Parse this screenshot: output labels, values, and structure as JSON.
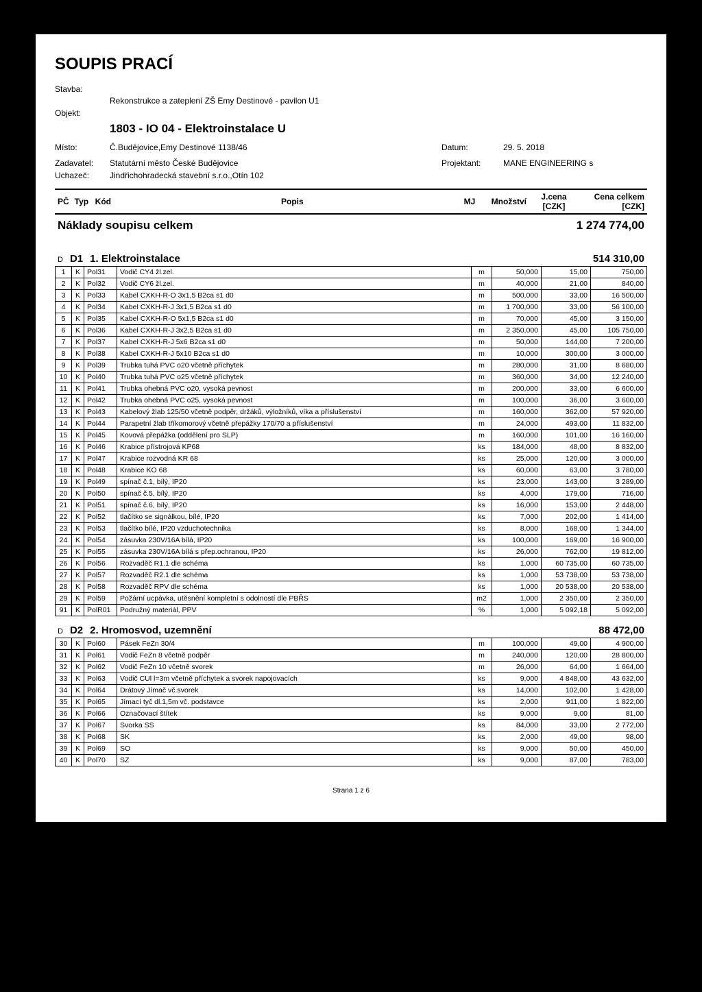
{
  "title": "SOUPIS PRACÍ",
  "header": {
    "stavba_label": "Stavba:",
    "stavba_value": "Rekonstrukce a zateplení ZŠ Emy Destinové - pavilon U1",
    "objekt_label": "Objekt:",
    "objekt_value": "1803 - IO 04 - Elektroinstalace U",
    "misto_label": "Místo:",
    "misto_value": "Č.Budějovice,Emy Destinové 1138/46",
    "zadavatel_label": "Zadavatel:",
    "zadavatel_value": "Statutární město České Budějovice",
    "uchazec_label": "Uchazeč:",
    "uchazec_value": "Jindřichohradecká stavební s.r.o.,Otín 102",
    "datum_label": "Datum:",
    "datum_value": "29. 5. 2018",
    "projektant_label": "Projektant:",
    "projektant_value": "MANE ENGINEERING s"
  },
  "columns": {
    "pc": "PČ",
    "typ": "Typ",
    "kod": "Kód",
    "popis": "Popis",
    "mj": "MJ",
    "mnozstvi": "Množství",
    "jcena": "J.cena [CZK]",
    "cena": "Cena celkem [CZK]"
  },
  "summary": {
    "label": "Náklady soupisu celkem",
    "value": "1 274 774,00"
  },
  "sections": [
    {
      "dmark": "D",
      "code": "D1",
      "title": "1. Elektroinstalace",
      "total": "514 310,00",
      "rows": [
        {
          "n": "1",
          "t": "K",
          "k": "Pol31",
          "p": "Vodič CY4 žl.zel.",
          "mj": "m",
          "mn": "50,000",
          "jc": "15,00",
          "cc": "750,00"
        },
        {
          "n": "2",
          "t": "K",
          "k": "Pol32",
          "p": "Vodič CY6 žl.zel.",
          "mj": "m",
          "mn": "40,000",
          "jc": "21,00",
          "cc": "840,00"
        },
        {
          "n": "3",
          "t": "K",
          "k": "Pol33",
          "p": "Kabel CXKH-R-O 3x1,5 B2ca s1 d0",
          "mj": "m",
          "mn": "500,000",
          "jc": "33,00",
          "cc": "16 500,00"
        },
        {
          "n": "4",
          "t": "K",
          "k": "Pol34",
          "p": "Kabel CXKH-R-J 3x1,5 B2ca s1 d0",
          "mj": "m",
          "mn": "1 700,000",
          "jc": "33,00",
          "cc": "56 100,00"
        },
        {
          "n": "5",
          "t": "K",
          "k": "Pol35",
          "p": "Kabel CXKH-R-O 5x1,5 B2ca s1 d0",
          "mj": "m",
          "mn": "70,000",
          "jc": "45,00",
          "cc": "3 150,00"
        },
        {
          "n": "6",
          "t": "K",
          "k": "Pol36",
          "p": "Kabel CXKH-R-J 3x2,5 B2ca s1 d0",
          "mj": "m",
          "mn": "2 350,000",
          "jc": "45,00",
          "cc": "105 750,00"
        },
        {
          "n": "7",
          "t": "K",
          "k": "Pol37",
          "p": "Kabel CXKH-R-J 5x6 B2ca s1 d0",
          "mj": "m",
          "mn": "50,000",
          "jc": "144,00",
          "cc": "7 200,00"
        },
        {
          "n": "8",
          "t": "K",
          "k": "Pol38",
          "p": "Kabel CXKH-R-J 5x10 B2ca s1 d0",
          "mj": "m",
          "mn": "10,000",
          "jc": "300,00",
          "cc": "3 000,00"
        },
        {
          "n": "9",
          "t": "K",
          "k": "Pol39",
          "p": "Trubka tuhá PVC o20 včetně příchytek",
          "mj": "m",
          "mn": "280,000",
          "jc": "31,00",
          "cc": "8 680,00"
        },
        {
          "n": "10",
          "t": "K",
          "k": "Pol40",
          "p": "Trubka tuhá PVC o25 včetně příchytek",
          "mj": "m",
          "mn": "360,000",
          "jc": "34,00",
          "cc": "12 240,00"
        },
        {
          "n": "11",
          "t": "K",
          "k": "Pol41",
          "p": "Trubka ohebná PVC o20, vysoká pevnost",
          "mj": "m",
          "mn": "200,000",
          "jc": "33,00",
          "cc": "6 600,00"
        },
        {
          "n": "12",
          "t": "K",
          "k": "Pol42",
          "p": "Trubka ohebná PVC o25, vysoká pevnost",
          "mj": "m",
          "mn": "100,000",
          "jc": "36,00",
          "cc": "3 600,00"
        },
        {
          "n": "13",
          "t": "K",
          "k": "Pol43",
          "p": "Kabelový žlab 125/50 včetně podpěr, držáků, výložníků, víka a příslušenství",
          "mj": "m",
          "mn": "160,000",
          "jc": "362,00",
          "cc": "57 920,00"
        },
        {
          "n": "14",
          "t": "K",
          "k": "Pol44",
          "p": "Parapetní žlab tříkomorový včetně přepážky 170/70 a příslušenství",
          "mj": "m",
          "mn": "24,000",
          "jc": "493,00",
          "cc": "11 832,00"
        },
        {
          "n": "15",
          "t": "K",
          "k": "Pol45",
          "p": "Kovová přepážka (oddělení pro SLP)",
          "mj": "m",
          "mn": "160,000",
          "jc": "101,00",
          "cc": "16 160,00"
        },
        {
          "n": "16",
          "t": "K",
          "k": "Pol46",
          "p": "Krabice přístrojová KP68",
          "mj": "ks",
          "mn": "184,000",
          "jc": "48,00",
          "cc": "8 832,00"
        },
        {
          "n": "17",
          "t": "K",
          "k": "Pol47",
          "p": "Krabice rozvodná KR 68",
          "mj": "ks",
          "mn": "25,000",
          "jc": "120,00",
          "cc": "3 000,00"
        },
        {
          "n": "18",
          "t": "K",
          "k": "Pol48",
          "p": "Krabice KO 68",
          "mj": "ks",
          "mn": "60,000",
          "jc": "63,00",
          "cc": "3 780,00"
        },
        {
          "n": "19",
          "t": "K",
          "k": "Pol49",
          "p": "spínač č.1, bílý, IP20",
          "mj": "ks",
          "mn": "23,000",
          "jc": "143,00",
          "cc": "3 289,00"
        },
        {
          "n": "20",
          "t": "K",
          "k": "Pol50",
          "p": "spínač č.5, bílý, IP20",
          "mj": "ks",
          "mn": "4,000",
          "jc": "179,00",
          "cc": "716,00"
        },
        {
          "n": "21",
          "t": "K",
          "k": "Pol51",
          "p": "spínač č.6, bílý, IP20",
          "mj": "ks",
          "mn": "16,000",
          "jc": "153,00",
          "cc": "2 448,00"
        },
        {
          "n": "22",
          "t": "K",
          "k": "Pol52",
          "p": "tlačítko se signálkou, bílé, IP20",
          "mj": "ks",
          "mn": "7,000",
          "jc": "202,00",
          "cc": "1 414,00"
        },
        {
          "n": "23",
          "t": "K",
          "k": "Pol53",
          "p": "tlačítko bílé, IP20 vzduchotechnika",
          "mj": "ks",
          "mn": "8,000",
          "jc": "168,00",
          "cc": "1 344,00"
        },
        {
          "n": "24",
          "t": "K",
          "k": "Pol54",
          "p": "zásuvka 230V/16A bílá, IP20",
          "mj": "ks",
          "mn": "100,000",
          "jc": "169,00",
          "cc": "16 900,00"
        },
        {
          "n": "25",
          "t": "K",
          "k": "Pol55",
          "p": "zásuvka 230V/16A bílá s přep.ochranou, IP20",
          "mj": "ks",
          "mn": "26,000",
          "jc": "762,00",
          "cc": "19 812,00"
        },
        {
          "n": "26",
          "t": "K",
          "k": "Pol56",
          "p": "Rozvaděč R1.1 dle schéma",
          "mj": "ks",
          "mn": "1,000",
          "jc": "60 735,00",
          "cc": "60 735,00"
        },
        {
          "n": "27",
          "t": "K",
          "k": "Pol57",
          "p": "Rozvaděč R2.1 dle schéma",
          "mj": "ks",
          "mn": "1,000",
          "jc": "53 738,00",
          "cc": "53 738,00"
        },
        {
          "n": "28",
          "t": "K",
          "k": "Pol58",
          "p": "Rozvaděč RPV dle schéma",
          "mj": "ks",
          "mn": "1,000",
          "jc": "20 538,00",
          "cc": "20 538,00"
        },
        {
          "n": "29",
          "t": "K",
          "k": "Pol59",
          "p": "Požární ucpávka, utěsnění kompletní s odolností dle PBŘS",
          "mj": "m2",
          "mn": "1,000",
          "jc": "2 350,00",
          "cc": "2 350,00"
        },
        {
          "n": "91",
          "t": "K",
          "k": "PolR01",
          "p": "Podružný materiál, PPV",
          "mj": "%",
          "mn": "1,000",
          "jc": "5 092,18",
          "cc": "5 092,00"
        }
      ]
    },
    {
      "dmark": "D",
      "code": "D2",
      "title": "2. Hromosvod, uzemnění",
      "total": "88 472,00",
      "rows": [
        {
          "n": "30",
          "t": "K",
          "k": "Pol60",
          "p": "Pásek FeZn 30/4",
          "mj": "m",
          "mn": "100,000",
          "jc": "49,00",
          "cc": "4 900,00"
        },
        {
          "n": "31",
          "t": "K",
          "k": "Pol61",
          "p": "Vodič FeZn 8 včetně podpěr",
          "mj": "m",
          "mn": "240,000",
          "jc": "120,00",
          "cc": "28 800,00"
        },
        {
          "n": "32",
          "t": "K",
          "k": "Pol62",
          "p": "Vodič FeZn 10 včetně svorek",
          "mj": "m",
          "mn": "26,000",
          "jc": "64,00",
          "cc": "1 664,00"
        },
        {
          "n": "33",
          "t": "K",
          "k": "Pol63",
          "p": "Vodič CUl l=3m včetně příchytek a svorek napojovacích",
          "mj": "ks",
          "mn": "9,000",
          "jc": "4 848,00",
          "cc": "43 632,00"
        },
        {
          "n": "34",
          "t": "K",
          "k": "Pol64",
          "p": "Drátový Jímač vč.svorek",
          "mj": "ks",
          "mn": "14,000",
          "jc": "102,00",
          "cc": "1 428,00"
        },
        {
          "n": "35",
          "t": "K",
          "k": "Pol65",
          "p": "Jímací tyč dl.1,5m vč. podstavce",
          "mj": "ks",
          "mn": "2,000",
          "jc": "911,00",
          "cc": "1 822,00"
        },
        {
          "n": "36",
          "t": "K",
          "k": "Pol66",
          "p": "Označovací štítek",
          "mj": "ks",
          "mn": "9,000",
          "jc": "9,00",
          "cc": "81,00"
        },
        {
          "n": "37",
          "t": "K",
          "k": "Pol67",
          "p": "Svorka SS",
          "mj": "ks",
          "mn": "84,000",
          "jc": "33,00",
          "cc": "2 772,00"
        },
        {
          "n": "38",
          "t": "K",
          "k": "Pol68",
          "p": "SK",
          "mj": "ks",
          "mn": "2,000",
          "jc": "49,00",
          "cc": "98,00"
        },
        {
          "n": "39",
          "t": "K",
          "k": "Pol69",
          "p": "SO",
          "mj": "ks",
          "mn": "9,000",
          "jc": "50,00",
          "cc": "450,00"
        },
        {
          "n": "40",
          "t": "K",
          "k": "Pol70",
          "p": "SZ",
          "mj": "ks",
          "mn": "9,000",
          "jc": "87,00",
          "cc": "783,00"
        }
      ]
    }
  ],
  "footer_mark": "Strana 1 z 6"
}
